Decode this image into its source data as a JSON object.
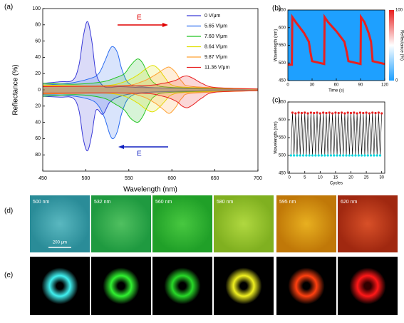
{
  "chart_data": [
    {
      "type": "line",
      "panel_label": "(a)",
      "x_label": "Wavelength (nm)",
      "y_label": "Reflectance (%)",
      "fill": true,
      "forward_label": "E",
      "reverse_label": "E",
      "xlim": [
        450,
        700
      ],
      "xticks": [
        450,
        500,
        550,
        600,
        650,
        700
      ],
      "ylim": [
        -100,
        100
      ],
      "yticks": [
        100,
        80,
        60,
        40,
        20,
        0,
        {
          "value": -20,
          "label": "20"
        },
        {
          "value": -40,
          "label": "40"
        },
        {
          "value": -60,
          "label": "60"
        },
        {
          "value": -80,
          "label": "80"
        }
      ],
      "series": [
        {
          "name": "0 V/μm",
          "color": "#3a3ad8",
          "x": [
            450,
            470,
            485,
            492,
            497,
            502,
            507,
            512,
            520,
            528,
            540,
            560,
            600,
            650,
            700
          ],
          "values": [
            8,
            10,
            12,
            30,
            65,
            84,
            60,
            20,
            5,
            3,
            4,
            3,
            2,
            1,
            1
          ],
          "reverse_values": [
            -8,
            -9,
            -10,
            -25,
            -60,
            -75,
            -55,
            -25,
            -30,
            -15,
            -8,
            -4,
            -2,
            -1,
            -1
          ]
        },
        {
          "name": "5.65 V/μm",
          "color": "#2a6cf0",
          "x": [
            450,
            480,
            505,
            515,
            522,
            528,
            532,
            537,
            542,
            550,
            565,
            600,
            700
          ],
          "values": [
            6,
            8,
            14,
            20,
            35,
            50,
            53,
            45,
            25,
            8,
            4,
            2,
            1
          ],
          "reverse_values": [
            -6,
            -7,
            -12,
            -20,
            -35,
            -55,
            -60,
            -50,
            -28,
            -10,
            -4,
            -2,
            -1
          ]
        },
        {
          "name": "7.60 V/μm",
          "color": "#22c422",
          "x": [
            450,
            490,
            520,
            535,
            545,
            552,
            560,
            566,
            572,
            580,
            600,
            700
          ],
          "values": [
            8,
            7,
            10,
            15,
            20,
            30,
            38,
            33,
            20,
            8,
            3,
            1
          ],
          "reverse_values": [
            -8,
            -6,
            -10,
            -18,
            -25,
            -35,
            -40,
            -33,
            -20,
            -8,
            -3,
            -1
          ]
        },
        {
          "name": "8.64 V/μm",
          "color": "#e0e000",
          "x": [
            450,
            520,
            545,
            560,
            570,
            578,
            585,
            592,
            600,
            620,
            700
          ],
          "values": [
            6,
            5,
            10,
            18,
            26,
            30,
            25,
            15,
            6,
            3,
            1
          ],
          "reverse_values": [
            -5,
            -4,
            -8,
            -16,
            -24,
            -27,
            -22,
            -14,
            -6,
            -3,
            -1
          ]
        },
        {
          "name": "9.87 V/μm",
          "color": "#ffa030",
          "x": [
            450,
            540,
            565,
            580,
            590,
            597,
            604,
            612,
            625,
            700
          ],
          "values": [
            5,
            5,
            10,
            18,
            25,
            28,
            22,
            10,
            4,
            1
          ],
          "reverse_values": [
            -5,
            -4,
            -8,
            -16,
            -24,
            -29,
            -22,
            -10,
            -4,
            -1
          ]
        },
        {
          "name": "11.36 V/μm",
          "color": "#e82020",
          "x": [
            450,
            560,
            590,
            605,
            612,
            618,
            625,
            635,
            650,
            700
          ],
          "values": [
            4,
            5,
            8,
            12,
            16,
            17,
            14,
            8,
            3,
            1
          ],
          "reverse_values": [
            -4,
            -4,
            -8,
            -14,
            -20,
            -22,
            -18,
            -10,
            -3,
            -1
          ]
        }
      ]
    },
    {
      "type": "line",
      "panel_label": "(b)",
      "x_label": "Time (s)",
      "y_label": "Wavelength (nm)",
      "xlim": [
        0,
        120
      ],
      "xticks": [
        0,
        30,
        60,
        90,
        120
      ],
      "ylim": [
        450,
        650
      ],
      "yticks": [
        450,
        500,
        550,
        600,
        650
      ],
      "colorbar": {
        "label": "Reflectance (%)",
        "ticks": [
          0,
          100
        ]
      },
      "series": [
        {
          "color": "#e82020",
          "x": [
            0,
            5,
            5.5,
            10,
            20,
            26,
            28,
            30,
            45,
            45.5,
            50,
            60,
            70,
            73,
            75,
            90,
            90.5,
            95,
            100,
            103,
            105,
            120
          ],
          "values": [
            495,
            495,
            630,
            615,
            585,
            560,
            530,
            505,
            497,
            630,
            615,
            590,
            560,
            530,
            505,
            497,
            630,
            615,
            585,
            560,
            505,
            497
          ]
        }
      ]
    },
    {
      "type": "line",
      "panel_label": "(c)",
      "x_label": "Cycles",
      "y_label": "Wavelength (nm)",
      "connect": true,
      "xlim": [
        -0.5,
        31
      ],
      "xticks": [
        0,
        5,
        10,
        15,
        20,
        25,
        30
      ],
      "ylim": [
        450,
        650
      ],
      "yticks": [
        450,
        500,
        550,
        600,
        650
      ],
      "series": [
        {
          "color": "#00d8e0",
          "marker": true,
          "x": [
            0.5,
            1.5,
            2.5,
            3.5,
            4.5,
            5.5,
            6.5,
            7.5,
            8.5,
            9.5,
            10.5,
            11.5,
            12.5,
            13.5,
            14.5,
            15.5,
            16.5,
            17.5,
            18.5,
            19.5,
            20.5,
            21.5,
            22.5,
            23.5,
            24.5,
            25.5,
            26.5,
            27.5,
            28.5,
            29.5
          ],
          "values": [
            500,
            500,
            500,
            500,
            500,
            500,
            500,
            500,
            500,
            500,
            500,
            500,
            500,
            500,
            500,
            500,
            500,
            500,
            500,
            500,
            500,
            500,
            500,
            500,
            500,
            500,
            500,
            500,
            500,
            500
          ]
        },
        {
          "color": "#e82020",
          "marker": true,
          "x": [
            1,
            2,
            3,
            4,
            5,
            6,
            7,
            8,
            9,
            10,
            11,
            12,
            13,
            14,
            15,
            16,
            17,
            18,
            19,
            20,
            21,
            22,
            23,
            24,
            25,
            26,
            27,
            28,
            29,
            30
          ],
          "values": [
            620,
            618,
            620,
            619,
            620,
            618,
            620,
            619,
            620,
            618,
            620,
            619,
            620,
            618,
            620,
            619,
            620,
            618,
            620,
            619,
            620,
            618,
            620,
            619,
            620,
            618,
            620,
            619,
            620,
            618
          ]
        }
      ]
    }
  ],
  "micrographs": {
    "panel_label": "(d)",
    "labels": [
      "500 nm",
      "532 nm",
      "560 nm",
      "580 nm",
      "595 nm",
      "620 nm"
    ],
    "scale_bar": "200 μm"
  },
  "spots": {
    "panel_label": "(e)"
  }
}
